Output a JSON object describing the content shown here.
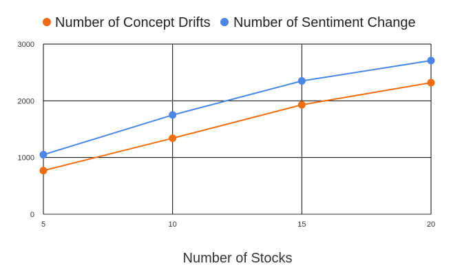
{
  "chart_data": {
    "type": "line",
    "title": "",
    "xlabel": "Number of Stocks",
    "ylabel": "",
    "x": [
      5,
      10,
      15,
      20
    ],
    "xlim": [
      5,
      20
    ],
    "ylim": [
      0,
      3000
    ],
    "x_ticks": [
      "5",
      "10",
      "15",
      "20"
    ],
    "y_ticks": [
      "0",
      "1000",
      "2000",
      "3000"
    ],
    "grid": true,
    "legend_position": "top-left",
    "series": [
      {
        "name": "Number of Concept Drifts",
        "color": "#f26d10",
        "values": [
          770,
          1340,
          1930,
          2320
        ]
      },
      {
        "name": "Number of Sentiment Change",
        "color": "#4a86e8",
        "values": [
          1050,
          1750,
          2350,
          2710
        ]
      }
    ]
  }
}
